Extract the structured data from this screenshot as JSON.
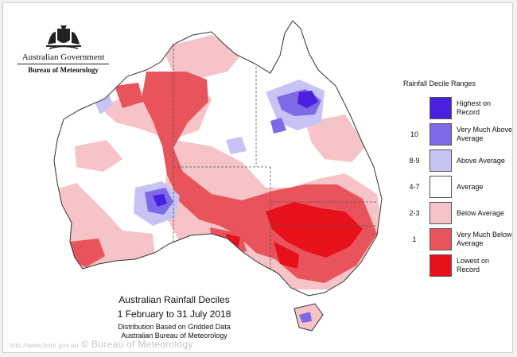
{
  "agency": {
    "line1": "Australian Government",
    "line2": "Bureau of Meteorology"
  },
  "legend": {
    "title": "Rainfall Decile Ranges",
    "items": [
      {
        "decile": "",
        "label": "Highest on Record",
        "color": "#4a1fe0"
      },
      {
        "decile": "10",
        "label": "Very Much Above Average",
        "color": "#7e6ae6"
      },
      {
        "decile": "8-9",
        "label": "Above Average",
        "color": "#c7c3f4"
      },
      {
        "decile": "4-7",
        "label": "Average",
        "color": "#ffffff"
      },
      {
        "decile": "2-3",
        "label": "Below Average",
        "color": "#f6c3c6"
      },
      {
        "decile": "1",
        "label": "Very Much Below Average",
        "color": "#e8535c"
      },
      {
        "decile": "",
        "label": "Lowest on Record",
        "color": "#e8101a"
      }
    ]
  },
  "caption": {
    "title": "Australian Rainfall Deciles",
    "period": "1 February to 31 July 2018",
    "note1": "Distribution Based on Gridded Data",
    "note2": "Australian Bureau of Meteorology"
  },
  "watermark": {
    "url": "http://www.bom.gov.au",
    "text": "© Bureau of Meteorology"
  },
  "icons": [
    "coat-of-arms-icon"
  ]
}
